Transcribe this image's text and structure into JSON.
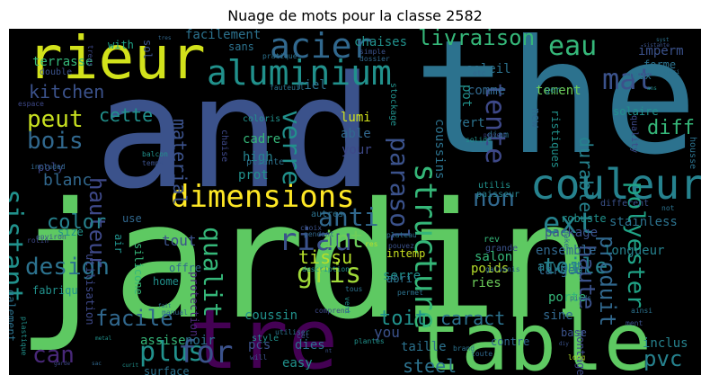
{
  "chart_data": {
    "type": "wordcloud",
    "title": "Nuage de mots pour la classe 2582",
    "words": [
      {
        "text": "jardin",
        "color": "#5ec962"
      },
      {
        "text": "and",
        "color": "#3b528b"
      },
      {
        "text": "the",
        "color": "#2c728e"
      },
      {
        "text": "table",
        "color": "#5ec962"
      },
      {
        "text": "tre",
        "color": "#440154"
      },
      {
        "text": "rieur",
        "color": "#d2e21b"
      },
      {
        "text": "couleur",
        "color": "#26828e"
      },
      {
        "text": "aluminium",
        "color": "#21918c"
      },
      {
        "text": "dimensions",
        "color": "#fde725"
      },
      {
        "text": "acier",
        "color": "#31688e"
      },
      {
        "text": "mat",
        "color": "#3b528b"
      },
      {
        "text": "eau",
        "color": "#35b779"
      },
      {
        "text": "peut",
        "color": "#c8e020"
      },
      {
        "text": "bois",
        "color": "#31688e"
      },
      {
        "text": "kitchen",
        "color": "#3b528b"
      },
      {
        "text": "livraison",
        "color": "#35b779"
      },
      {
        "text": "parasol",
        "color": "#3b528b"
      },
      {
        "text": "tente",
        "color": "#3e4989"
      },
      {
        "text": "verre",
        "color": "#21918c"
      },
      {
        "text": "structure",
        "color": "#35b779"
      },
      {
        "text": "polyester",
        "color": "#20a386"
      },
      {
        "text": "ext",
        "color": "#26828e"
      },
      {
        "text": "non",
        "color": "#31688e"
      },
      {
        "text": "gris",
        "color": "#a0da39"
      },
      {
        "text": "riau",
        "color": "#3b528b"
      },
      {
        "text": "facile",
        "color": "#31688e"
      },
      {
        "text": "plus",
        "color": "#21918c"
      },
      {
        "text": "for",
        "color": "#3b528b"
      },
      {
        "text": "can",
        "color": "#482878"
      },
      {
        "text": "design",
        "color": "#2c728e"
      },
      {
        "text": "sistant",
        "color": "#21918c"
      },
      {
        "text": "hauteur",
        "color": "#3e4989"
      },
      {
        "text": "anti",
        "color": "#31688e"
      },
      {
        "text": "int",
        "color": "#6ccd5a"
      },
      {
        "text": "qualit",
        "color": "#35b779"
      },
      {
        "text": "pvc",
        "color": "#26828e"
      },
      {
        "text": "toile",
        "color": "#26828e"
      },
      {
        "text": "haute",
        "color": "#3b528b"
      },
      {
        "text": "produit",
        "color": "#31688e"
      },
      {
        "text": "steel",
        "color": "#2c728e"
      },
      {
        "text": "cette",
        "color": "#21918c"
      },
      {
        "text": "blanc",
        "color": "#31688e"
      },
      {
        "text": "color",
        "color": "#26828e"
      },
      {
        "text": "tissu",
        "color": "#b5de2b"
      },
      {
        "text": "toit",
        "color": "#21918c"
      },
      {
        "text": "durable",
        "color": "#26828e"
      },
      {
        "text": "diff",
        "color": "#35b779"
      },
      {
        "text": "caract",
        "color": "#2c728e"
      },
      {
        "text": "material",
        "color": "#3b528b"
      },
      {
        "text": "terrasse",
        "color": "#35b779"
      },
      {
        "text": "facilement",
        "color": "#2c728e"
      },
      {
        "text": "chaises",
        "color": "#21918c"
      },
      {
        "text": "ensemble",
        "color": "#31688e"
      },
      {
        "text": "longueur",
        "color": "#26828e"
      },
      {
        "text": "soleil",
        "color": "#2c728e"
      },
      {
        "text": "tement",
        "color": "#6ccd5a"
      },
      {
        "text": "lumi",
        "color": "#d2e21b"
      },
      {
        "text": "able",
        "color": "#31688e"
      },
      {
        "text": "your",
        "color": "#3e4989"
      },
      {
        "text": "vert",
        "color": "#2c728e"
      },
      {
        "text": "cadre",
        "color": "#35b779"
      },
      {
        "text": "high",
        "color": "#26828e"
      },
      {
        "text": "prot",
        "color": "#21918c"
      },
      {
        "text": "tout",
        "color": "#3b528b"
      },
      {
        "text": "sans",
        "color": "#2c728e"
      },
      {
        "text": "with",
        "color": "#20a386"
      },
      {
        "text": "size",
        "color": "#21918c"
      },
      {
        "text": "use",
        "color": "#31688e"
      },
      {
        "text": "poly",
        "color": "#3e4989"
      },
      {
        "text": "stainless",
        "color": "#2c728e"
      },
      {
        "text": "package",
        "color": "#3b528b"
      },
      {
        "text": "robuste",
        "color": "#21918c"
      },
      {
        "text": "solaire",
        "color": "#21918c"
      },
      {
        "text": "salon",
        "color": "#35b779"
      },
      {
        "text": "intemp",
        "color": "#c8e020"
      },
      {
        "text": "serre",
        "color": "#21918c"
      },
      {
        "text": "poids",
        "color": "#b5de2b"
      },
      {
        "text": "porte",
        "color": "#35b779"
      },
      {
        "text": "ries",
        "color": "#6ccd5a"
      },
      {
        "text": "abri",
        "color": "#2c728e"
      },
      {
        "text": "coussin",
        "color": "#21918c"
      },
      {
        "text": "you",
        "color": "#3b528b"
      },
      {
        "text": "taille",
        "color": "#2c728e"
      },
      {
        "text": "inclus",
        "color": "#26828e"
      },
      {
        "text": "sine",
        "color": "#31688e"
      },
      {
        "text": "noir",
        "color": "#2c728e"
      },
      {
        "text": "assise",
        "color": "#35b779"
      },
      {
        "text": "pcs",
        "color": "#3b528b"
      },
      {
        "text": "dies",
        "color": "#2c728e"
      },
      {
        "text": "easy",
        "color": "#21918c"
      },
      {
        "text": "largeur",
        "color": "#31688e"
      },
      {
        "text": "auvent",
        "color": "#26828e"
      },
      {
        "text": "montage",
        "color": "#3e4989"
      },
      {
        "text": "home",
        "color": "#21918c"
      },
      {
        "text": "offre",
        "color": "#31688e"
      },
      {
        "text": "imperm",
        "color": "#3b528b"
      },
      {
        "text": "forme",
        "color": "#2c728e"
      },
      {
        "text": "coussins",
        "color": "#2c728e"
      },
      {
        "text": "comme",
        "color": "#31688e"
      },
      {
        "text": "pot",
        "color": "#21918c"
      },
      {
        "text": "riel",
        "color": "#2c728e"
      },
      {
        "text": "sol",
        "color": "#3b528b"
      },
      {
        "text": "silicone",
        "color": "#35b779"
      },
      {
        "text": "air",
        "color": "#21918c"
      },
      {
        "text": "utilisation",
        "color": "#3e4989"
      },
      {
        "text": "galement",
        "color": "#2c728e"
      },
      {
        "text": "fabriqu",
        "color": "#21918c"
      },
      {
        "text": "surface",
        "color": "#2c728e"
      },
      {
        "text": "contre",
        "color": "#31688e"
      },
      {
        "text": "base",
        "color": "#3b528b"
      },
      {
        "text": "deux",
        "color": "#2c728e"
      },
      {
        "text": "ristiques",
        "color": "#21918c"
      },
      {
        "text": "new",
        "color": "#31688e"
      },
      {
        "text": "quality",
        "color": "#3e4989"
      },
      {
        "text": "ger",
        "color": "#26828e"
      },
      {
        "text": "double",
        "color": "#3b528b"
      },
      {
        "text": "coloris",
        "color": "#21918c"
      },
      {
        "text": "pliante",
        "color": "#2c728e"
      },
      {
        "text": "chaise",
        "color": "#3e4989"
      },
      {
        "text": "protection",
        "color": "#482878"
      },
      {
        "text": "rev",
        "color": "#35b779"
      },
      {
        "text": "grande",
        "color": "#3b528b"
      },
      {
        "text": "diam",
        "color": "#2c728e"
      },
      {
        "text": "utilis",
        "color": "#21918c"
      },
      {
        "text": "paisseur",
        "color": "#26828e"
      },
      {
        "text": "autres",
        "color": "#2c728e"
      },
      {
        "text": "choix",
        "color": "#3b528b"
      },
      {
        "text": "style",
        "color": "#21918c"
      },
      {
        "text": "pendant",
        "color": "#31688e"
      },
      {
        "text": "different",
        "color": "#3b528b"
      },
      {
        "text": "housse",
        "color": "#2c728e"
      },
      {
        "text": "balcon",
        "color": "#21918c"
      },
      {
        "text": "rotin",
        "color": "#3e4989"
      },
      {
        "text": "environ",
        "color": "#3b528b"
      },
      {
        "text": "plastique",
        "color": "#21918c"
      },
      {
        "text": "manual",
        "color": "#31688e"
      },
      {
        "text": "fauteuil",
        "color": "#2c728e"
      },
      {
        "text": "espace",
        "color": "#3e4989"
      },
      {
        "text": "included",
        "color": "#31688e"
      },
      {
        "text": "temps",
        "color": "#3b528b"
      },
      {
        "text": "stockage",
        "color": "#21918c"
      },
      {
        "text": "dossier",
        "color": "#31688e"
      },
      {
        "text": "simple",
        "color": "#3b528b"
      },
      {
        "text": "pratique",
        "color": "#2c728e"
      },
      {
        "text": "tress",
        "color": "#3e4989"
      },
      {
        "text": "etc",
        "color": "#31688e"
      },
      {
        "text": "aussi",
        "color": "#2c728e"
      },
      {
        "text": "ans",
        "color": "#21918c"
      },
      {
        "text": "syst",
        "color": "#2c728e"
      },
      {
        "text": "sistante",
        "color": "#3b528b"
      },
      {
        "text": "tres",
        "color": "#31688e"
      },
      {
        "text": "peuvent",
        "color": "#3e4989"
      },
      {
        "text": "solide",
        "color": "#21918c"
      },
      {
        "text": "plateau",
        "color": "#2c728e"
      },
      {
        "text": "pouvez",
        "color": "#3b528b"
      },
      {
        "text": "galvanis",
        "color": "#31688e"
      },
      {
        "text": "permet",
        "color": "#2c728e"
      },
      {
        "text": "description",
        "color": "#21918c"
      },
      {
        "text": "comprend",
        "color": "#3e4989"
      },
      {
        "text": "utiliser",
        "color": "#2c728e"
      },
      {
        "text": "cet",
        "color": "#3b528b"
      },
      {
        "text": "plantes",
        "color": "#21918c"
      },
      {
        "text": "toute",
        "color": "#31688e"
      },
      {
        "text": "brand",
        "color": "#2c728e"
      },
      {
        "text": "long",
        "color": "#b5de2b"
      },
      {
        "text": "ment",
        "color": "#3b528b"
      },
      {
        "text": "ainsi",
        "color": "#2c728e"
      },
      {
        "text": "pieds",
        "color": "#31688e"
      },
      {
        "text": "metal",
        "color": "#21918c"
      },
      {
        "text": "fait",
        "color": "#2c728e"
      },
      {
        "text": "will",
        "color": "#3b528b"
      },
      {
        "text": "sac",
        "color": "#31688e"
      },
      {
        "text": "garde",
        "color": "#3e4989"
      },
      {
        "text": "curit",
        "color": "#21918c"
      },
      {
        "text": "diy",
        "color": "#3b528b"
      },
      {
        "text": "not",
        "color": "#2c728e"
      },
      {
        "text": "make",
        "color": "#31688e"
      },
      {
        "text": "res",
        "color": "#b5de2b"
      },
      {
        "text": "tous",
        "color": "#2c728e"
      },
      {
        "text": "vent",
        "color": "#21918c"
      },
      {
        "text": "nt",
        "color": "#3b528b"
      }
    ]
  }
}
